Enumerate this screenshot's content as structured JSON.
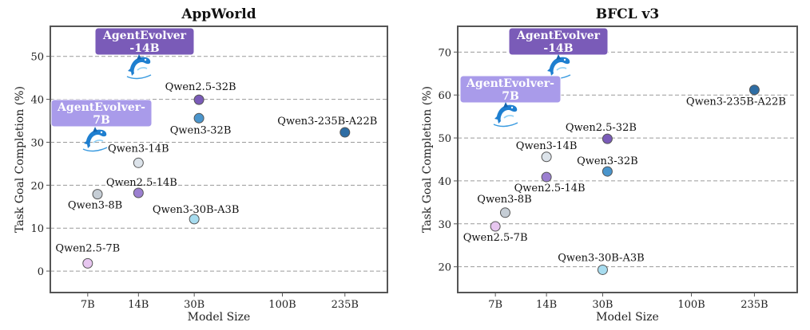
{
  "chart_data": [
    {
      "type": "scatter",
      "title": "AppWorld",
      "xlabel": "Model Size",
      "ylabel": "Task Goal Completion (%)",
      "xscale": "log",
      "xticks": [
        {
          "value": 7,
          "label": "7B"
        },
        {
          "value": 14,
          "label": "14B"
        },
        {
          "value": 30,
          "label": "30B"
        },
        {
          "value": 100,
          "label": "100B"
        },
        {
          "value": 235,
          "label": "235B"
        }
      ],
      "yticks": [
        0,
        10,
        20,
        30,
        40,
        50
      ],
      "ylim": [
        -5,
        57
      ],
      "grid": "horizontal dashed",
      "points": [
        {
          "label": "Qwen2.5-7B",
          "x": 7,
          "y": 1.8,
          "color": "#E7C6F0"
        },
        {
          "label": "Qwen3-8B",
          "x": 8,
          "y": 17.9,
          "color": "#C5CDD5"
        },
        {
          "label": "Qwen2.5-14B",
          "x": 14,
          "y": 18.2,
          "color": "#9B7FD0"
        },
        {
          "label": "Qwen3-14B",
          "x": 14,
          "y": 25.2,
          "color": "#DCE3EA"
        },
        {
          "label": "Qwen3-30B-A3B",
          "x": 30,
          "y": 12.1,
          "color": "#A7DCEF"
        },
        {
          "label": "Qwen2.5-32B",
          "x": 32,
          "y": 39.9,
          "color": "#7A5BB8"
        },
        {
          "label": "Qwen3-32B",
          "x": 32,
          "y": 35.6,
          "color": "#4A95CC"
        },
        {
          "label": "Qwen3-235B-A22B",
          "x": 235,
          "y": 32.3,
          "color": "#2E6DA4"
        }
      ],
      "highlights": [
        {
          "label_lines": [
            "AgentEvolver",
            "-14B"
          ],
          "x": 14,
          "y": 48.5,
          "color": "#7A5BB8"
        },
        {
          "label_lines": [
            "AgentEvolver-",
            "7B"
          ],
          "x": 7,
          "y": 31.0,
          "color": "#A99BEA"
        }
      ]
    },
    {
      "type": "scatter",
      "title": "BFCL v3",
      "xlabel": "Model Size",
      "ylabel": "Task Goal Completion (%)",
      "xscale": "log",
      "xticks": [
        {
          "value": 7,
          "label": "7B"
        },
        {
          "value": 14,
          "label": "14B"
        },
        {
          "value": 30,
          "label": "30B"
        },
        {
          "value": 100,
          "label": "100B"
        },
        {
          "value": 235,
          "label": "235B"
        }
      ],
      "yticks": [
        20,
        30,
        40,
        50,
        60,
        70
      ],
      "ylim": [
        14,
        76
      ],
      "grid": "horizontal dashed",
      "points": [
        {
          "label": "Qwen2.5-7B",
          "x": 7,
          "y": 29.4,
          "color": "#E7C6F0"
        },
        {
          "label": "Qwen3-8B",
          "x": 8,
          "y": 32.6,
          "color": "#C5CDD5"
        },
        {
          "label": "Qwen2.5-14B",
          "x": 14,
          "y": 40.9,
          "color": "#9B7FD0"
        },
        {
          "label": "Qwen3-14B",
          "x": 14,
          "y": 45.6,
          "color": "#DCE3EA"
        },
        {
          "label": "Qwen3-30B-A3B",
          "x": 30,
          "y": 19.3,
          "color": "#A7DCEF"
        },
        {
          "label": "Qwen2.5-32B",
          "x": 32,
          "y": 49.8,
          "color": "#7A5BB8"
        },
        {
          "label": "Qwen3-32B",
          "x": 32,
          "y": 42.2,
          "color": "#4A95CC"
        },
        {
          "label": "Qwen3-235B-A22B",
          "x": 235,
          "y": 61.2,
          "color": "#2E6DA4"
        }
      ],
      "highlights": [
        {
          "label_lines": [
            "AgentEvolver",
            "-14B"
          ],
          "x": 14,
          "y": 67.5,
          "color": "#7A5BB8"
        },
        {
          "label_lines": [
            "AgentEvolver-",
            "7B"
          ],
          "x": 7,
          "y": 57.8,
          "color": "#A99BEA"
        }
      ]
    }
  ]
}
